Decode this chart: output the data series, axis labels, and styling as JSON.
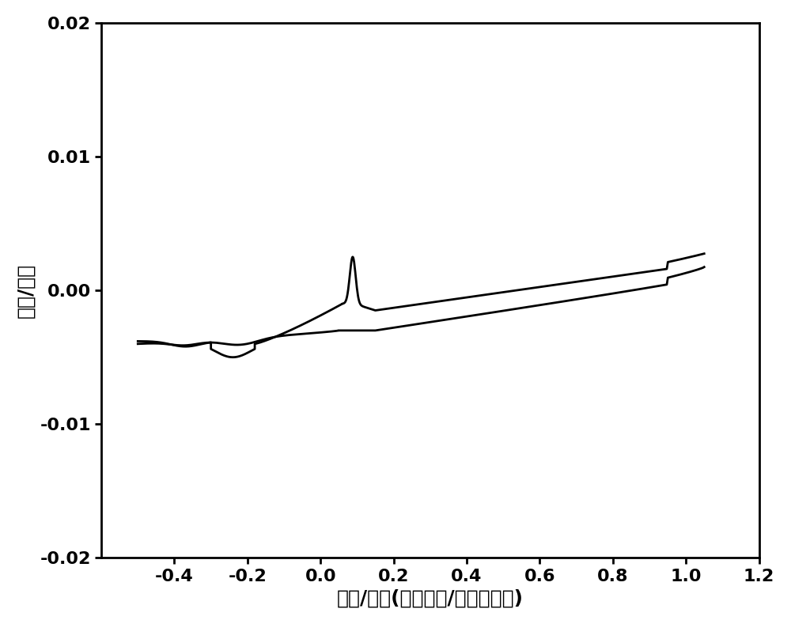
{
  "xlabel": "电压/伏特(相对于银/氯化银电极)",
  "ylabel": "电流/安培",
  "xlim": [
    -0.6,
    1.2
  ],
  "ylim": [
    -0.02,
    0.02
  ],
  "xticks": [
    -0.4,
    -0.2,
    0.0,
    0.2,
    0.4,
    0.6,
    0.8,
    1.0,
    1.2
  ],
  "yticks": [
    -0.02,
    -0.01,
    0.0,
    0.01,
    0.02
  ],
  "line_color": "#000000",
  "line_width": 2.0,
  "background_color": "#ffffff",
  "xlabel_fontsize": 18,
  "ylabel_fontsize": 18,
  "tick_fontsize": 16,
  "font_weight": "bold"
}
